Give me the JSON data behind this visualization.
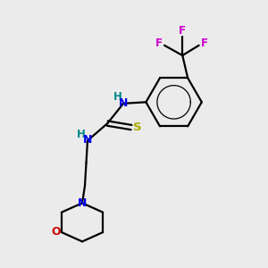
{
  "bg_color": "#ebebeb",
  "black": "#000000",
  "blue": "#0000ee",
  "red_o": "#cc0000",
  "yellow": "#aaaa00",
  "teal": "#008888",
  "magenta": "#cc00cc",
  "lw": 1.6,
  "figsize": [
    3.0,
    3.0
  ],
  "dpi": 100,
  "xlim": [
    0,
    10
  ],
  "ylim": [
    0,
    10
  ]
}
